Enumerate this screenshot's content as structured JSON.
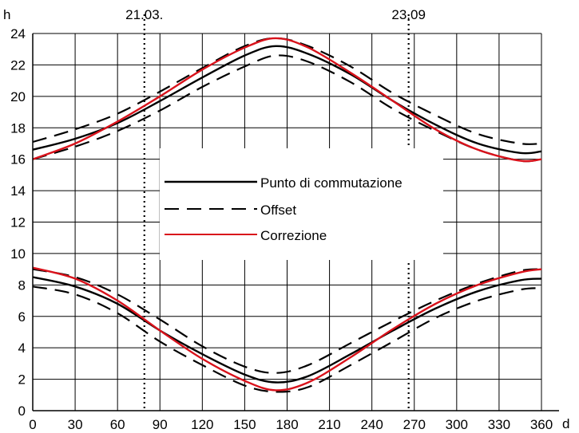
{
  "chart_data": {
    "type": "line",
    "xlabel": "d",
    "ylabel": "h",
    "xlim": [
      0,
      360
    ],
    "ylim": [
      0,
      24
    ],
    "grid": true,
    "x_ticks": [
      0,
      30,
      60,
      90,
      120,
      150,
      180,
      210,
      240,
      270,
      300,
      330,
      360
    ],
    "y_ticks": [
      0,
      2,
      4,
      6,
      8,
      10,
      12,
      14,
      16,
      18,
      20,
      22,
      24
    ],
    "vlines": [
      {
        "x": 79,
        "label": "21.03."
      },
      {
        "x": 266,
        "label": "23.09"
      }
    ],
    "legend": {
      "position": "center-left",
      "entries": [
        {
          "label": "Punto di commutazione",
          "style": "solid",
          "color": "#000000"
        },
        {
          "label": "Offset",
          "style": "dashed",
          "color": "#000000"
        },
        {
          "label": "Correzione",
          "style": "solid",
          "color": "#d9121b"
        }
      ]
    },
    "series": [
      {
        "group": "Punto di commutazione",
        "style": "solid",
        "color": "#000000",
        "x": [
          0,
          30,
          60,
          90,
          120,
          150,
          172,
          195,
          225,
          255,
          285,
          315,
          345,
          360
        ],
        "y": [
          16.6,
          17.3,
          18.3,
          19.7,
          21.2,
          22.6,
          23.2,
          22.7,
          21.4,
          19.7,
          18.2,
          17.0,
          16.4,
          16.5
        ]
      },
      {
        "group": "Offset",
        "style": "dashed",
        "color": "#000000",
        "x": [
          0,
          30,
          60,
          90,
          120,
          150,
          172,
          195,
          225,
          255,
          285,
          315,
          345,
          360
        ],
        "y": [
          17.1,
          17.9,
          18.9,
          20.3,
          21.8,
          23.2,
          23.7,
          23.2,
          21.9,
          20.2,
          18.8,
          17.6,
          17.0,
          17.0
        ]
      },
      {
        "group": "Offset",
        "style": "dashed",
        "color": "#000000",
        "x": [
          0,
          30,
          60,
          90,
          120,
          150,
          172,
          195,
          225,
          255,
          285,
          315,
          345,
          360
        ],
        "y": [
          16.0,
          16.8,
          17.8,
          19.1,
          20.6,
          21.9,
          22.6,
          22.2,
          20.9,
          19.2,
          17.8,
          16.6,
          15.9,
          16.0
        ]
      },
      {
        "group": "Correzione",
        "style": "solid",
        "color": "#d9121b",
        "x": [
          0,
          30,
          60,
          90,
          120,
          150,
          172,
          195,
          225,
          255,
          285,
          315,
          345,
          360
        ],
        "y": [
          16.0,
          17.0,
          18.4,
          20.0,
          21.7,
          23.1,
          23.7,
          23.1,
          21.5,
          19.7,
          17.9,
          16.6,
          15.9,
          16.0
        ]
      },
      {
        "group": "Punto di commutazione",
        "style": "solid",
        "color": "#000000",
        "x": [
          0,
          30,
          60,
          90,
          120,
          150,
          172,
          195,
          225,
          255,
          285,
          315,
          345,
          360
        ],
        "y": [
          8.5,
          7.9,
          6.8,
          5.1,
          3.6,
          2.3,
          1.8,
          2.2,
          3.6,
          5.1,
          6.5,
          7.6,
          8.3,
          8.4
        ]
      },
      {
        "group": "Offset",
        "style": "dashed",
        "color": "#000000",
        "x": [
          0,
          30,
          60,
          90,
          120,
          150,
          172,
          195,
          225,
          255,
          285,
          315,
          345,
          360
        ],
        "y": [
          9.0,
          8.5,
          7.4,
          5.8,
          4.1,
          2.8,
          2.4,
          2.9,
          4.3,
          5.7,
          7.0,
          8.1,
          8.9,
          9.0
        ]
      },
      {
        "group": "Offset",
        "style": "dashed",
        "color": "#000000",
        "x": [
          0,
          30,
          60,
          90,
          120,
          150,
          172,
          195,
          225,
          255,
          285,
          315,
          345,
          360
        ],
        "y": [
          7.9,
          7.4,
          6.2,
          4.4,
          2.9,
          1.6,
          1.2,
          1.5,
          2.9,
          4.4,
          5.9,
          7.0,
          7.7,
          7.8
        ]
      },
      {
        "group": "Correzione",
        "style": "solid",
        "color": "#d9121b",
        "x": [
          0,
          30,
          60,
          90,
          120,
          150,
          172,
          195,
          225,
          255,
          285,
          315,
          345,
          360
        ],
        "y": [
          9.1,
          8.4,
          7.0,
          5.1,
          3.3,
          1.9,
          1.3,
          1.8,
          3.4,
          5.2,
          6.8,
          8.0,
          8.8,
          9.0
        ]
      }
    ]
  }
}
